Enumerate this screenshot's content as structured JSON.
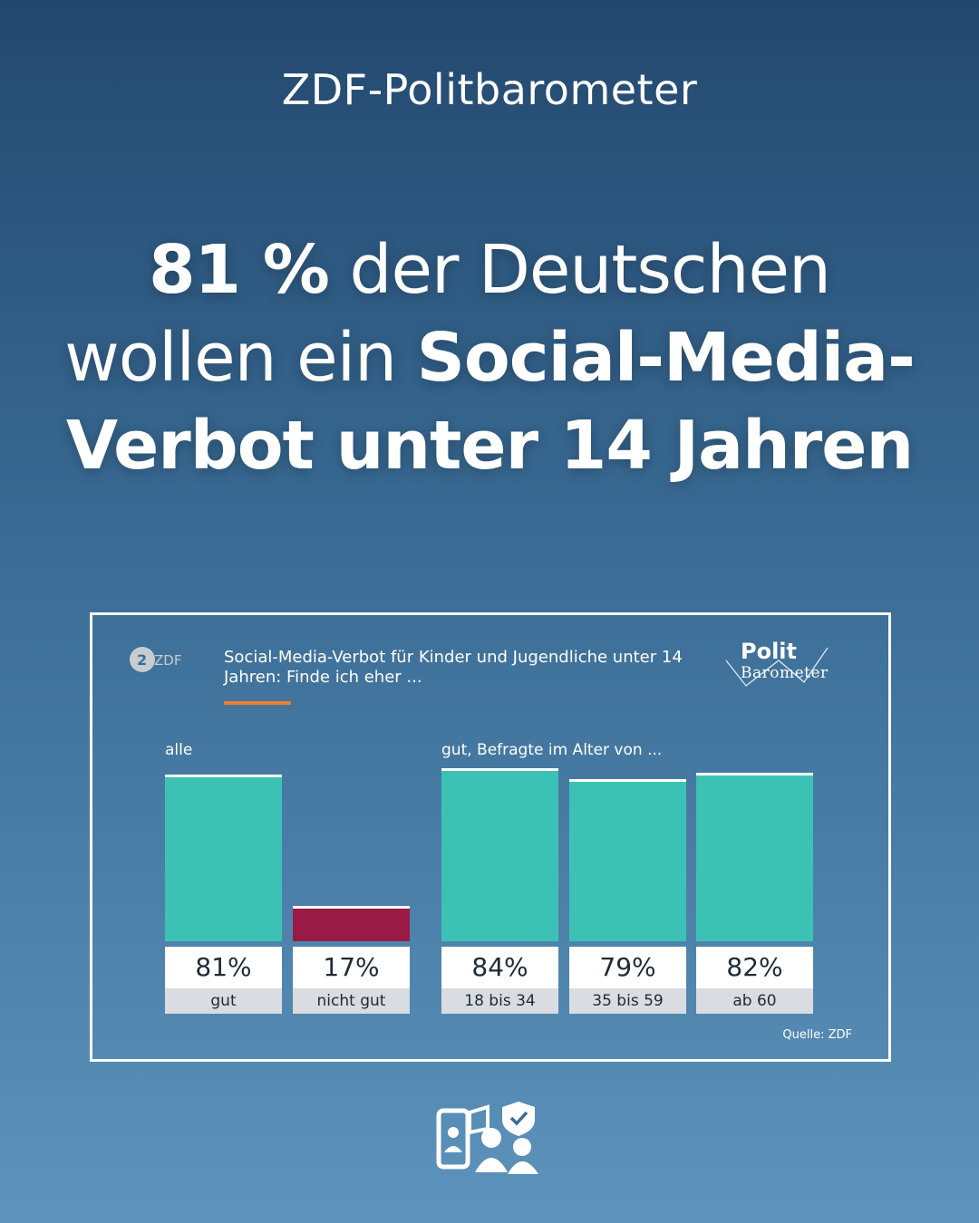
{
  "header": {
    "kicker": "ZDF-Politbarometer"
  },
  "headline": {
    "pct": "81 %",
    "part1": " der Deutschen wollen ein ",
    "part2": "Social-Media-Verbot unter 14 Jahren"
  },
  "logos": {
    "zdf": "ZDF",
    "politbarometer_line1": "Polit",
    "politbarometer_line2": "Barometer"
  },
  "colors": {
    "accent_orange": "#ef7d2e",
    "bar_teal": "#3cc2b4",
    "bar_red": "#9a1a46",
    "background_top": "#23486f",
    "background_bottom": "#5d93bc"
  },
  "icons": {
    "bottom": "phone-family-shield-icon"
  },
  "chart_data": {
    "type": "bar",
    "title": "Social-Media-Verbot für Kinder und Jugendliche unter 14 Jahren: Finde ich eher ...",
    "groups": [
      {
        "label": "alle",
        "categories": [
          "gut",
          "nicht gut"
        ],
        "values": [
          81,
          17
        ],
        "colors": [
          "#3cc2b4",
          "#9a1a46"
        ]
      },
      {
        "label": "gut, Befragte im Alter von ...",
        "categories": [
          "18 bis 34",
          "35 bis 59",
          "ab 60"
        ],
        "values": [
          84,
          79,
          82
        ],
        "colors": [
          "#3cc2b4",
          "#3cc2b4",
          "#3cc2b4"
        ]
      }
    ],
    "value_labels": [
      "81%",
      "17%",
      "84%",
      "79%",
      "82%"
    ],
    "unit": "%",
    "ylim": [
      0,
      100
    ],
    "grid": false,
    "source": "Quelle: ZDF"
  }
}
